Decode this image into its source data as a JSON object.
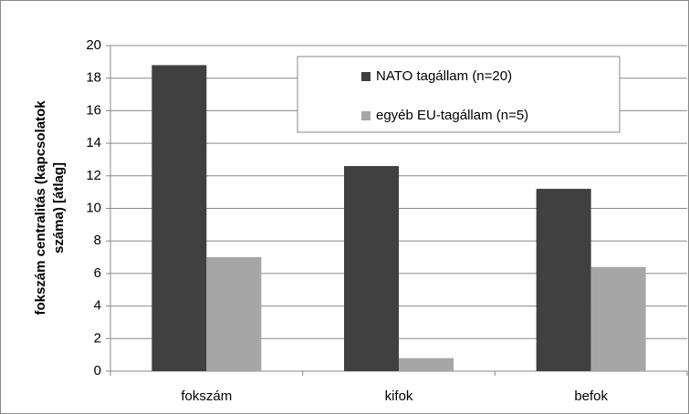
{
  "chart_data": {
    "type": "bar",
    "ylabel": [
      "fokszám centralitás (kapcsolatok",
      "száma) [átlag]"
    ],
    "categories": [
      "fokszám",
      "kifok",
      "befok"
    ],
    "series": [
      {
        "name": "NATO tagállam (n=20)",
        "color": "#404040",
        "values": [
          18.8,
          12.6,
          11.2
        ]
      },
      {
        "name": "egyéb EU-tagállam (n=5)",
        "color": "#a6a6a6",
        "values": [
          7.0,
          0.8,
          6.4
        ]
      }
    ],
    "ylim": [
      0,
      20
    ],
    "yticks": [
      0,
      2,
      4,
      6,
      8,
      10,
      12,
      14,
      16,
      18,
      20
    ],
    "grid": true,
    "legend": "top-right"
  }
}
